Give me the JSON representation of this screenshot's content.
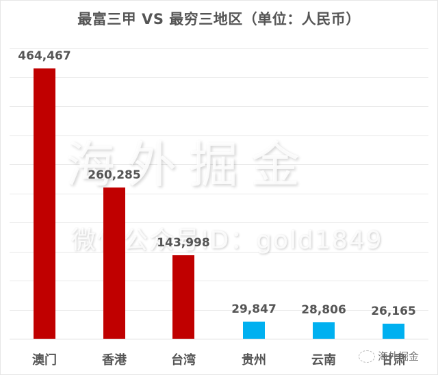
{
  "chart_data": {
    "type": "bar",
    "title": "最富三甲 VS 最穷三地区（单位：人民币）",
    "xlabel": "",
    "ylabel": "",
    "categories": [
      "澳门",
      "香港",
      "台湾",
      "贵州",
      "云南",
      "甘肃"
    ],
    "values": [
      464467,
      260285,
      143998,
      29847,
      28806,
      26165
    ],
    "value_labels": [
      "464,467",
      "260,285",
      "143,998",
      "29,847",
      "28,806",
      "26,165"
    ],
    "colors": [
      "#c00000",
      "#c00000",
      "#c00000",
      "#00b0f0",
      "#00b0f0",
      "#00b0f0"
    ],
    "ylim": [
      0,
      500000
    ],
    "grid": true,
    "legend": null
  },
  "watermark": {
    "main": "海外掘金",
    "sub": "微信公众号ID：gold1849",
    "corner": "海外掘金"
  }
}
